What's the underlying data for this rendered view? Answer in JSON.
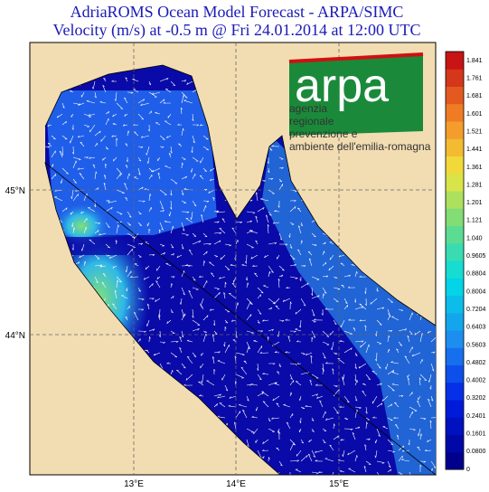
{
  "header": {
    "title_line1": "AdriaROMS Ocean Model Forecast - ARPA/SIMC",
    "title_line2": "Velocity (m/s) at -0.5 m @ Fri 24.01.2014 at 12:00 UTC"
  },
  "map": {
    "lat_labels": [
      "45°N",
      "44°N"
    ],
    "lon_labels": [
      "13°E",
      "14°E",
      "15°E"
    ]
  },
  "colorbar": {
    "labels": [
      "0",
      "0.0800",
      "0.1601",
      "0.2401",
      "0.3202",
      "0.4002",
      "0.4802",
      "0.5603",
      "0.6403",
      "0.7204",
      "0.8004",
      "0.8804",
      "0.9605",
      "1.040",
      "1.121",
      "1.201",
      "1.281",
      "1.361",
      "1.441",
      "1.521",
      "1.601",
      "1.681",
      "1.761",
      "1.841"
    ]
  },
  "logo": {
    "name": "arpa",
    "lines": [
      "agenzia",
      "regionale",
      "prevenzione e",
      "ambiente dell'emilia-romagna"
    ]
  }
}
